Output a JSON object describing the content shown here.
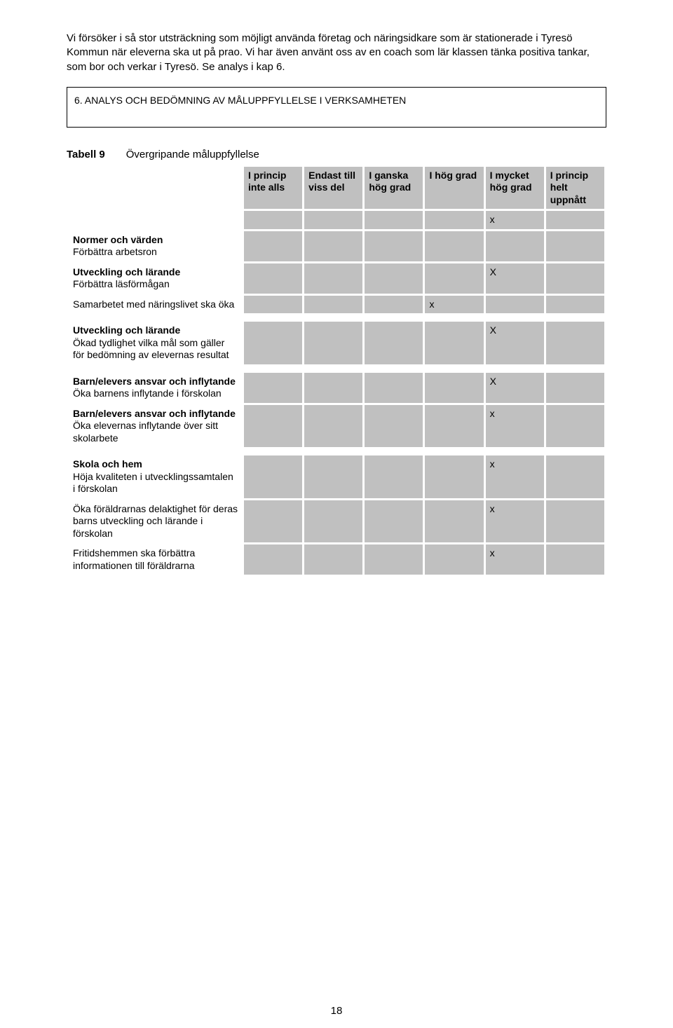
{
  "intro": {
    "p1": "Vi försöker i så stor utsträckning som möjligt använda företag och näringsidkare som är stationerade i Tyresö Kommun när eleverna ska ut på prao. Vi har även använt oss av en coach som lär klassen tänka positiva tankar, som bor och verkar i Tyresö. Se analys i kap 6."
  },
  "section_heading": "6. ANALYS OCH BEDÖMNING AV MÅLUPPFYLLELSE I VERKSAMHETEN",
  "table_caption_label": "Tabell 9",
  "table_caption_text": "Övergripande måluppfyllelse",
  "headers": {
    "c1": "I princip inte alls",
    "c2": "Endast till viss del",
    "c3": "I ganska hög grad",
    "c4": "I hög grad",
    "c5": "I mycket hög grad",
    "c6": "I princip helt uppnått"
  },
  "extra_row_mark": "x",
  "rows": [
    {
      "title": "Normer och värden",
      "sub": "Förbättra arbetsron",
      "marks": [
        "",
        "",
        "",
        "",
        "",
        ""
      ]
    },
    {
      "title": "Utveckling och lärande",
      "sub": "Förbättra läsförmågan",
      "marks": [
        "",
        "",
        "",
        "",
        "X",
        ""
      ]
    },
    {
      "title": "",
      "sub": "Samarbetet med näringslivet ska öka",
      "marks": [
        "",
        "",
        "",
        "x",
        "",
        ""
      ]
    },
    {
      "title": "Utveckling och lärande",
      "sub": "Ökad tydlighet vilka mål som gäller för bedömning av elevernas resultat",
      "marks": [
        "",
        "",
        "",
        "",
        "X",
        ""
      ]
    },
    {
      "title": "Barn/elevers ansvar och inflytande",
      "sub": "Öka barnens inflytande i förskolan",
      "marks": [
        "",
        "",
        "",
        "",
        "X",
        ""
      ]
    },
    {
      "title": "Barn/elevers ansvar och inflytande",
      "sub": "Öka elevernas inflytande över sitt skolarbete",
      "marks": [
        "",
        "",
        "",
        "",
        "x",
        ""
      ]
    },
    {
      "title": "Skola och hem",
      "sub": "Höja kvaliteten i utvecklingssamtalen i förskolan",
      "marks": [
        "",
        "",
        "",
        "",
        "x",
        ""
      ]
    },
    {
      "title": "",
      "sub": "Öka föräldrarnas delaktighet för deras barns utveckling och lärande i förskolan",
      "marks": [
        "",
        "",
        "",
        "",
        "x",
        ""
      ]
    },
    {
      "title": "",
      "sub": "Fritidshemmen ska förbättra informationen till föräldrarna",
      "marks": [
        "",
        "",
        "",
        "",
        "x",
        ""
      ]
    }
  ],
  "page_number": "18",
  "colors": {
    "grey": "#c0c0c0",
    "white": "#ffffff",
    "black": "#000000"
  }
}
